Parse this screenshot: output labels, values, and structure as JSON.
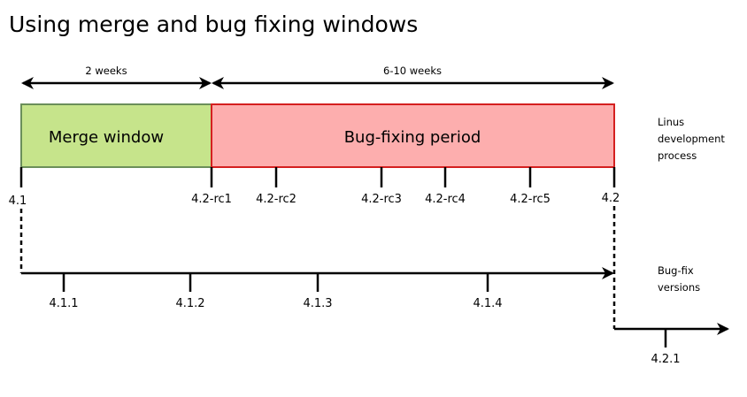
{
  "title": "Using merge and bug fixing windows",
  "durations": {
    "merge": "2 weeks",
    "bugfix": "6-10 weeks"
  },
  "boxes": {
    "merge": {
      "label": "Merge window",
      "fill": "#c6e48b",
      "stroke": "#6b8f5a"
    },
    "bugfix": {
      "label": "Bug-fixing period",
      "fill": "#fdaeae",
      "stroke": "#d42020"
    }
  },
  "mainline": {
    "start": "4.1",
    "rcs": [
      "4.2-rc1",
      "4.2-rc2",
      "4.2-rc3",
      "4.2-rc4",
      "4.2-rc5"
    ],
    "end": "4.2",
    "caption": [
      "Linus",
      "development",
      "process"
    ]
  },
  "stable": {
    "versions_41": [
      "4.1.1",
      "4.1.2",
      "4.1.3",
      "4.1.4"
    ],
    "versions_42": [
      "4.2.1"
    ],
    "caption": [
      "Bug-fix",
      "versions"
    ]
  }
}
